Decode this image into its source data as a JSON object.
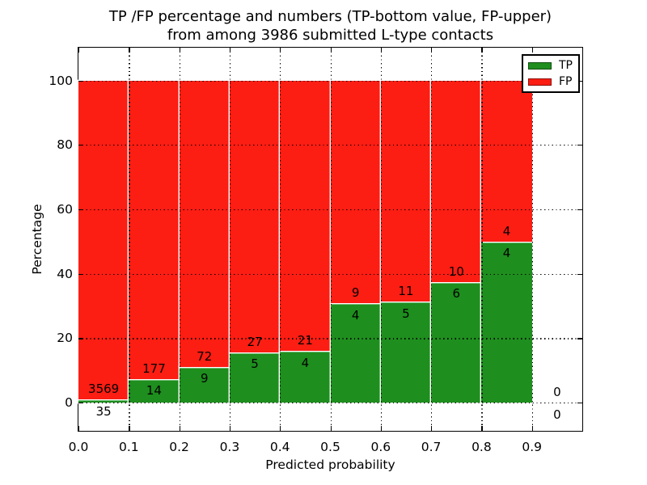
{
  "title": {
    "line1": "TP /FP percentage and numbers (TP-bottom value, FP-upper)",
    "line2": "from among 3986 submitted L-type contacts"
  },
  "axes": {
    "xlabel": "Predicted probability",
    "ylabel": "Percentage",
    "x_tick_labels": [
      "0.0",
      "0.1",
      "0.2",
      "0.3",
      "0.4",
      "0.5",
      "0.6",
      "0.7",
      "0.8",
      "0.9"
    ],
    "y_tick_labels": [
      "0",
      "20",
      "40",
      "60",
      "80",
      "100"
    ],
    "y_tick_values": [
      0,
      20,
      40,
      60,
      80,
      100
    ]
  },
  "colors": {
    "tp": "#1e8e1e",
    "fp": "#fc1d13",
    "grid": "#000000",
    "bar_edge": "#ffffff"
  },
  "legend": {
    "items": [
      {
        "label": "TP",
        "color_key": "tp"
      },
      {
        "label": "FP",
        "color_key": "fp"
      }
    ],
    "position": "upper right"
  },
  "chart_data": {
    "type": "bar",
    "stacked": true,
    "normalized_to_100": true,
    "title": "TP /FP percentage and numbers (TP-bottom value, FP-upper) from among 3986 submitted L-type contacts",
    "xlabel": "Predicted probability",
    "ylabel": "Percentage",
    "xlim": [
      0.0,
      1.0
    ],
    "ylim_pct": [
      -8.7,
      110.3
    ],
    "grid": true,
    "total_contacts": 3986,
    "bin_width": 0.1,
    "bin_starts": [
      0.0,
      0.1,
      0.2,
      0.3,
      0.4,
      0.5,
      0.6,
      0.7,
      0.8,
      0.9
    ],
    "series": [
      {
        "name": "TP",
        "counts": [
          35,
          14,
          9,
          5,
          4,
          4,
          5,
          6,
          4,
          0
        ]
      },
      {
        "name": "FP",
        "counts": [
          3569,
          177,
          72,
          27,
          21,
          9,
          11,
          10,
          4,
          0
        ]
      }
    ],
    "tp_percent": [
      0.97,
      7.33,
      11.11,
      15.63,
      16.0,
      30.77,
      31.25,
      37.5,
      50.0,
      null
    ],
    "fp_percent": [
      99.03,
      92.67,
      88.89,
      84.37,
      84.0,
      69.23,
      68.75,
      62.5,
      50.0,
      null
    ]
  }
}
